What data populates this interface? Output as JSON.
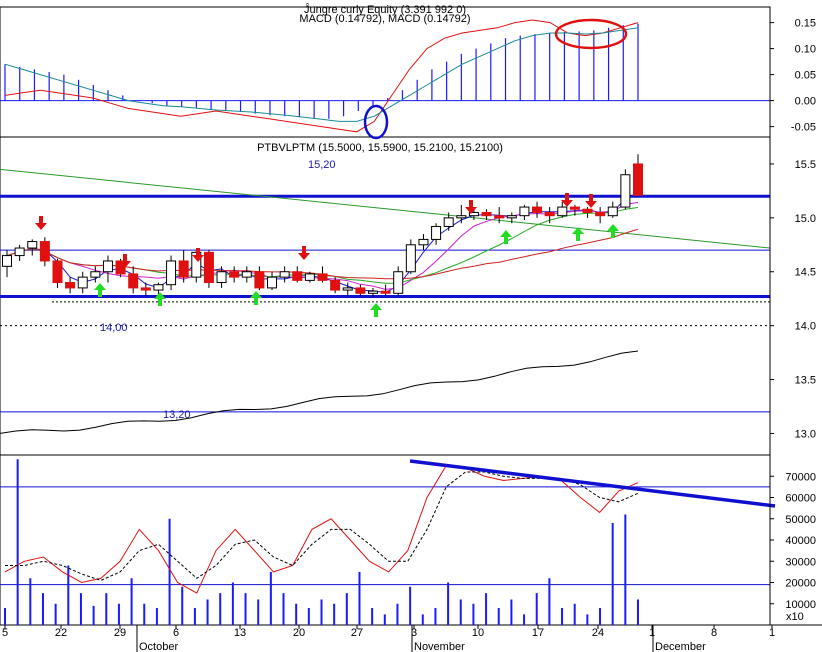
{
  "colors": {
    "background": "#ffffff",
    "macd_line": "#e01010",
    "signal_line": "#1a8a9a",
    "histogram": "#1a1aff",
    "level_line": "#1010d0",
    "trend_green": "#2a9a2a",
    "bull_candle": "#ffffff",
    "bear_candle": "#e01010",
    "arrow_down": "#e01010",
    "arrow_up": "#22dd22",
    "ellipse_red": "#e01010",
    "ellipse_blue": "#1010d0",
    "stoch_k": "#e01010",
    "stoch_d": "#000000",
    "volume": "#1a1aff"
  },
  "chart_data": [
    {
      "type": "line",
      "panel": "macd",
      "title_lines": [
        "Ĵungre curly Equity (3.391 992 0)",
        "MACD (0.14792), MACD (0.14792)"
      ],
      "yticks": [
        "0.15",
        "0.10",
        "0.05",
        "0.00",
        "-0.05"
      ],
      "ylim": [
        -0.07,
        0.18
      ],
      "series": [
        {
          "values": [
            0.01,
            0.015,
            0.02,
            0.015,
            0.01,
            0.005,
            -0.005,
            -0.015,
            -0.02,
            -0.025,
            -0.03,
            -0.025,
            -0.02,
            -0.025,
            -0.03,
            -0.035,
            -0.04,
            -0.045,
            -0.05,
            -0.055,
            -0.06,
            -0.04,
            0.01,
            0.06,
            0.1,
            0.12,
            0.13,
            0.135,
            0.14,
            0.15,
            0.155,
            0.15,
            0.13,
            0.125,
            0.13,
            0.14,
            0.15
          ]
        },
        {
          "values": [
            0.07,
            0.06,
            0.05,
            0.04,
            0.03,
            0.02,
            0.01,
            0.0,
            -0.005,
            -0.01,
            -0.012,
            -0.015,
            -0.018,
            -0.02,
            -0.022,
            -0.025,
            -0.028,
            -0.032,
            -0.036,
            -0.04,
            -0.04,
            -0.03,
            -0.01,
            0.01,
            0.03,
            0.05,
            0.07,
            0.085,
            0.1,
            0.115,
            0.125,
            0.13,
            0.13,
            0.128,
            0.13,
            0.135,
            0.14
          ]
        }
      ],
      "histogram": [
        0.07,
        0.065,
        0.06,
        0.055,
        0.05,
        0.04,
        0.03,
        0.02,
        0.01,
        0.0,
        -0.005,
        -0.01,
        -0.012,
        -0.015,
        -0.018,
        -0.02,
        -0.022,
        -0.025,
        -0.028,
        -0.03,
        -0.032,
        -0.035,
        -0.035,
        -0.03,
        -0.02,
        -0.01,
        0.005,
        0.02,
        0.04,
        0.06,
        0.075,
        0.09,
        0.1,
        0.11,
        0.12,
        0.125,
        0.128,
        0.13,
        0.132,
        0.133,
        0.135,
        0.14,
        0.145,
        0.148
      ]
    },
    {
      "type": "candlestick",
      "panel": "price",
      "title": "PTBVLPTM (15.5000, 15.5900, 15.2100, 15.2100)",
      "yticks": [
        "15.5",
        "15.0",
        "14.5",
        "14.0",
        "13.5",
        "13.0"
      ],
      "ylim": [
        12.8,
        15.75
      ],
      "annotations": [
        "15,20",
        "14,00",
        "13,20"
      ],
      "levels": [
        15.2,
        14.27,
        14.7,
        13.2,
        14.0
      ],
      "candles": [
        [
          14.55,
          14.7,
          14.45,
          14.65
        ],
        [
          14.65,
          14.75,
          14.6,
          14.72
        ],
        [
          14.72,
          14.8,
          14.65,
          14.78
        ],
        [
          14.78,
          14.82,
          14.55,
          14.6
        ],
        [
          14.6,
          14.62,
          14.35,
          14.4
        ],
        [
          14.4,
          14.45,
          14.3,
          14.35
        ],
        [
          14.35,
          14.5,
          14.3,
          14.45
        ],
        [
          14.45,
          14.55,
          14.4,
          14.5
        ],
        [
          14.5,
          14.65,
          14.4,
          14.6
        ],
        [
          14.6,
          14.62,
          14.45,
          14.48
        ],
        [
          14.48,
          14.55,
          14.3,
          14.35
        ],
        [
          14.35,
          14.4,
          14.28,
          14.33
        ],
        [
          14.33,
          14.4,
          14.28,
          14.38
        ],
        [
          14.38,
          14.65,
          14.33,
          14.6
        ],
        [
          14.6,
          14.7,
          14.4,
          14.45
        ],
        [
          14.45,
          14.7,
          14.4,
          14.68
        ],
        [
          14.68,
          14.7,
          14.35,
          14.4
        ],
        [
          14.4,
          14.55,
          14.35,
          14.5
        ],
        [
          14.5,
          14.55,
          14.4,
          14.45
        ],
        [
          14.45,
          14.55,
          14.4,
          14.5
        ],
        [
          14.5,
          14.55,
          14.33,
          14.35
        ],
        [
          14.35,
          14.5,
          14.33,
          14.45
        ],
        [
          14.45,
          14.55,
          14.4,
          14.5
        ],
        [
          14.5,
          14.55,
          14.4,
          14.42
        ],
        [
          14.42,
          14.5,
          14.4,
          14.48
        ],
        [
          14.48,
          14.55,
          14.4,
          14.42
        ],
        [
          14.42,
          14.45,
          14.3,
          14.33
        ],
        [
          14.33,
          14.4,
          14.28,
          14.35
        ],
        [
          14.35,
          14.38,
          14.28,
          14.3
        ],
        [
          14.3,
          14.35,
          14.27,
          14.32
        ],
        [
          14.32,
          14.38,
          14.28,
          14.3
        ],
        [
          14.3,
          14.55,
          14.28,
          14.5
        ],
        [
          14.5,
          14.8,
          14.48,
          14.75
        ],
        [
          14.75,
          14.85,
          14.7,
          14.8
        ],
        [
          14.8,
          14.95,
          14.75,
          14.92
        ],
        [
          14.92,
          15.05,
          14.88,
          15.0
        ],
        [
          15.0,
          15.12,
          14.95,
          15.02
        ],
        [
          15.02,
          15.08,
          14.98,
          15.05
        ],
        [
          15.05,
          15.08,
          14.98,
          15.02
        ],
        [
          15.02,
          15.1,
          14.95,
          15.0
        ],
        [
          15.0,
          15.05,
          14.95,
          15.02
        ],
        [
          15.02,
          15.12,
          14.98,
          15.1
        ],
        [
          15.1,
          15.15,
          15.0,
          15.05
        ],
        [
          15.05,
          15.1,
          14.95,
          15.02
        ],
        [
          15.02,
          15.15,
          15.0,
          15.1
        ],
        [
          15.1,
          15.12,
          15.02,
          15.08
        ],
        [
          15.08,
          15.1,
          15.0,
          15.05
        ],
        [
          15.05,
          15.1,
          14.95,
          15.02
        ],
        [
          15.02,
          15.15,
          15.0,
          15.1
        ],
        [
          15.1,
          15.45,
          15.08,
          15.4
        ],
        [
          15.5,
          15.59,
          15.21,
          15.21
        ]
      ]
    },
    {
      "type": "line",
      "panel": "stochastic-volume",
      "yticks": [
        "70000",
        "60000",
        "50000",
        "40000",
        "30000",
        "20000",
        "10000"
      ],
      "ylim": [
        0,
        80000
      ],
      "unit_label": "x10",
      "xticks": [
        "5",
        "22",
        "29",
        "6",
        "13",
        "20",
        "27",
        "3",
        "10",
        "17",
        "24",
        "1",
        "8",
        "1"
      ],
      "month_labels": [
        "October",
        "November",
        "December"
      ],
      "series": [
        {
          "values": [
            25000,
            30000,
            32000,
            25000,
            20000,
            22000,
            30000,
            45000,
            35000,
            20000,
            15000,
            35000,
            45000,
            35000,
            25000,
            28000,
            45000,
            50000,
            40000,
            30000,
            25000,
            35000,
            60000,
            75000,
            74000,
            70000,
            68000,
            69000,
            70000,
            68000,
            60000,
            53000,
            63000,
            67000
          ]
        },
        {
          "values": [
            28000,
            28000,
            30000,
            28000,
            24000,
            21000,
            25000,
            35000,
            38000,
            30000,
            22000,
            28000,
            38000,
            40000,
            32000,
            28000,
            38000,
            45000,
            45000,
            38000,
            30000,
            30000,
            45000,
            65000,
            72000,
            72000,
            70000,
            69000,
            69000,
            69000,
            66000,
            60000,
            58000,
            62000
          ]
        }
      ],
      "volume": [
        8000,
        78000,
        22000,
        15000,
        10000,
        28000,
        15000,
        9000,
        15000,
        10000,
        22000,
        10000,
        8000,
        50000,
        18000,
        8000,
        12000,
        15000,
        20000,
        15000,
        12000,
        25000,
        15000,
        10000,
        8000,
        12000,
        10000,
        15000,
        25000,
        8000,
        5000,
        10000,
        18000,
        5000,
        8000,
        20000,
        12000,
        10000,
        15000,
        8000,
        12000,
        5000,
        15000,
        22000,
        8000,
        10000,
        5000,
        8000,
        48000,
        52000,
        12000
      ]
    }
  ]
}
